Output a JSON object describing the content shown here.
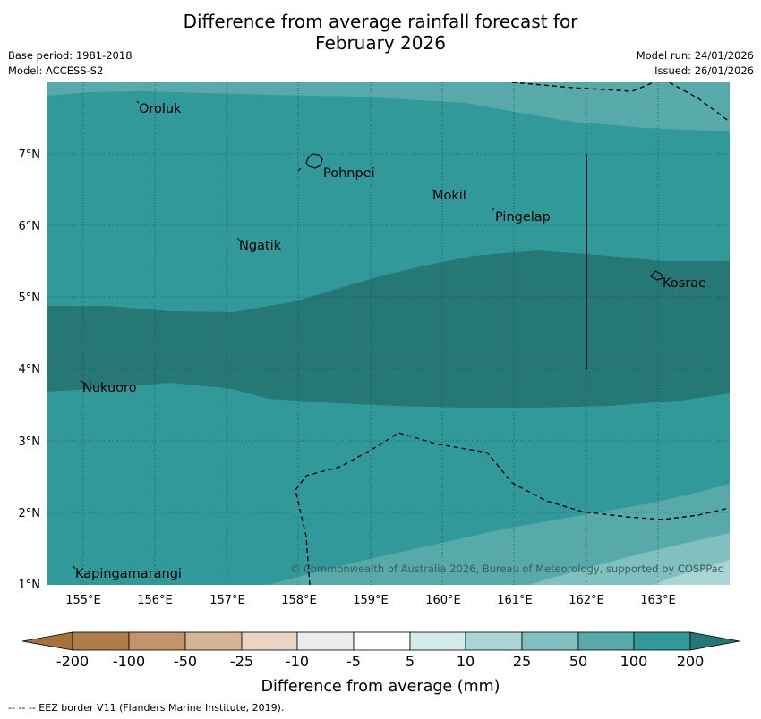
{
  "title": {
    "line1": "Difference from average rainfall forecast for",
    "line2": "February 2026"
  },
  "meta": {
    "base_period": "Base period: 1981-2018",
    "model": "Model: ACCESS-S2",
    "model_run": "Model run: 24/01/2026",
    "issued": "Issued: 26/01/2026"
  },
  "map": {
    "lat_labels": [
      "7°N",
      "6°N",
      "5°N",
      "4°N",
      "3°N",
      "2°N",
      "1°N"
    ],
    "lon_labels": [
      "155°E",
      "156°E",
      "157°E",
      "158°E",
      "159°E",
      "160°E",
      "161°E",
      "162°E",
      "163°E"
    ],
    "places": [
      {
        "name": "Oroluk"
      },
      {
        "name": "Pohnpei"
      },
      {
        "name": "Mokil"
      },
      {
        "name": "Pingelap"
      },
      {
        "name": "Ngatik"
      },
      {
        "name": "Kosrae"
      },
      {
        "name": "Nukuoro"
      },
      {
        "name": "Kapingamarangi"
      }
    ],
    "copyright": "© Commonwealth of Australia 2026, Bureau of Meteorology, supported by COSPPac",
    "colors": {
      "band_50": "#58aaaa",
      "band_100": "#31999a",
      "band_200": "#267876"
    }
  },
  "legend": {
    "ticks": [
      "-200",
      "-100",
      "-50",
      "-25",
      "-10",
      "-5",
      "5",
      "10",
      "25",
      "50",
      "100",
      "200"
    ],
    "colors": [
      "#a5723c",
      "#b07c48",
      "#c2946a",
      "#d5b496",
      "#e7d5c6",
      "#ececec",
      "#ffffff",
      "#d4ebe9",
      "#abd5d4",
      "#80c1c0",
      "#58aaaa",
      "#31999a",
      "#267876"
    ],
    "label": "Difference from average (mm)"
  },
  "footer": {
    "eez_note": "--  --  -- EEZ border V11 (Flanders Marine Institute, 2019)."
  }
}
